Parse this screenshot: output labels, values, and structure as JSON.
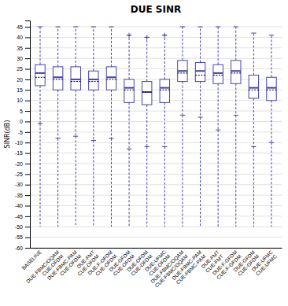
{
  "chart_data": {
    "type": "box",
    "title": "DUE SINR",
    "ylabel": "SINR(dB)",
    "ylim": [
      -60,
      48
    ],
    "yticks": [
      -60,
      -55,
      -50,
      -45,
      -40,
      -35,
      -30,
      -25,
      -20,
      -15,
      -10,
      -5,
      0,
      5,
      10,
      15,
      20,
      25,
      30,
      35,
      40,
      45
    ],
    "grid": true,
    "color": "#4444aa",
    "categories": [
      "BASELINE",
      "DUE-FBMC/OQAM\nCUE-OFDM",
      "DUE-FBMC-PAM\nCUE-OFDM",
      "DUE-FMT\nCUE-OFDM",
      "DUE-F-OFDM\nCUE-OFDM",
      "DUE-GFDM\nCUE-OFDM",
      "DUE-OFDM\nCUE-OFDM",
      "DUE-UFMC\nCUE-OFDM",
      "DUE-FBMC/OQAM\nCUE-FBMC/OQAM",
      "DUE-FBMC-PAM\nCUE-FBMC-PAM",
      "DUE-FMT\nCUE-FMT",
      "DUE-F-GFDM\nCUE-F-GFDM",
      "DUE-GFDM\nCUE-GFDM",
      "DUE-UFMC\nCUE-UFMC"
    ],
    "boxes": [
      {
        "q1": 17,
        "median": 23,
        "q3": 27,
        "mean": 21,
        "whislo": -1,
        "whishi": 45,
        "extend_low": -50,
        "fliers_hi": []
      },
      {
        "q1": 15,
        "median": 21,
        "q3": 26,
        "mean": 20,
        "whislo": -8,
        "whishi": 45,
        "extend_low": -50,
        "fliers_hi": []
      },
      {
        "q1": 15,
        "median": 20,
        "q3": 26,
        "mean": 19,
        "whislo": -7,
        "whishi": 45,
        "extend_low": -50,
        "fliers_hi": []
      },
      {
        "q1": 15,
        "median": 20,
        "q3": 24,
        "mean": 19,
        "whislo": -9,
        "whishi": 45,
        "extend_low": -50,
        "fliers_hi": []
      },
      {
        "q1": 15,
        "median": 21,
        "q3": 26,
        "mean": 20,
        "whislo": -8,
        "whishi": 45,
        "extend_low": -50,
        "fliers_hi": []
      },
      {
        "q1": 9,
        "median": 16,
        "q3": 20,
        "mean": 15,
        "whislo": -13,
        "whishi": 41,
        "extend_low": -50,
        "fliers_hi": [
          41
        ]
      },
      {
        "q1": 8,
        "median": 14,
        "q3": 19,
        "mean": 14,
        "whislo": -12,
        "whishi": 40,
        "extend_low": -50,
        "fliers_hi": [
          40
        ]
      },
      {
        "q1": 9,
        "median": 16,
        "q3": 20,
        "mean": 15,
        "whislo": -12,
        "whishi": 41,
        "extend_low": -50,
        "fliers_hi": [
          41
        ]
      },
      {
        "q1": 19,
        "median": 24,
        "q3": 29,
        "mean": 23,
        "whislo": 3,
        "whishi": 45,
        "extend_low": -50,
        "fliers_hi": []
      },
      {
        "q1": 19,
        "median": 24,
        "q3": 28,
        "mean": 22,
        "whislo": 2,
        "whishi": 45,
        "extend_low": -50,
        "fliers_hi": []
      },
      {
        "q1": 18,
        "median": 23,
        "q3": 27,
        "mean": 22,
        "whislo": -4,
        "whishi": 45,
        "extend_low": -50,
        "fliers_hi": []
      },
      {
        "q1": 18,
        "median": 24,
        "q3": 29,
        "mean": 23,
        "whislo": 3,
        "whishi": 45,
        "extend_low": -50,
        "fliers_hi": []
      },
      {
        "q1": 11,
        "median": 16,
        "q3": 22,
        "mean": 15,
        "whislo": -12,
        "whishi": 42,
        "extend_low": -50,
        "fliers_hi": []
      },
      {
        "q1": 10,
        "median": 16,
        "q3": 21,
        "mean": 15,
        "whislo": -10,
        "whishi": 41,
        "extend_low": -50,
        "fliers_hi": []
      }
    ]
  }
}
